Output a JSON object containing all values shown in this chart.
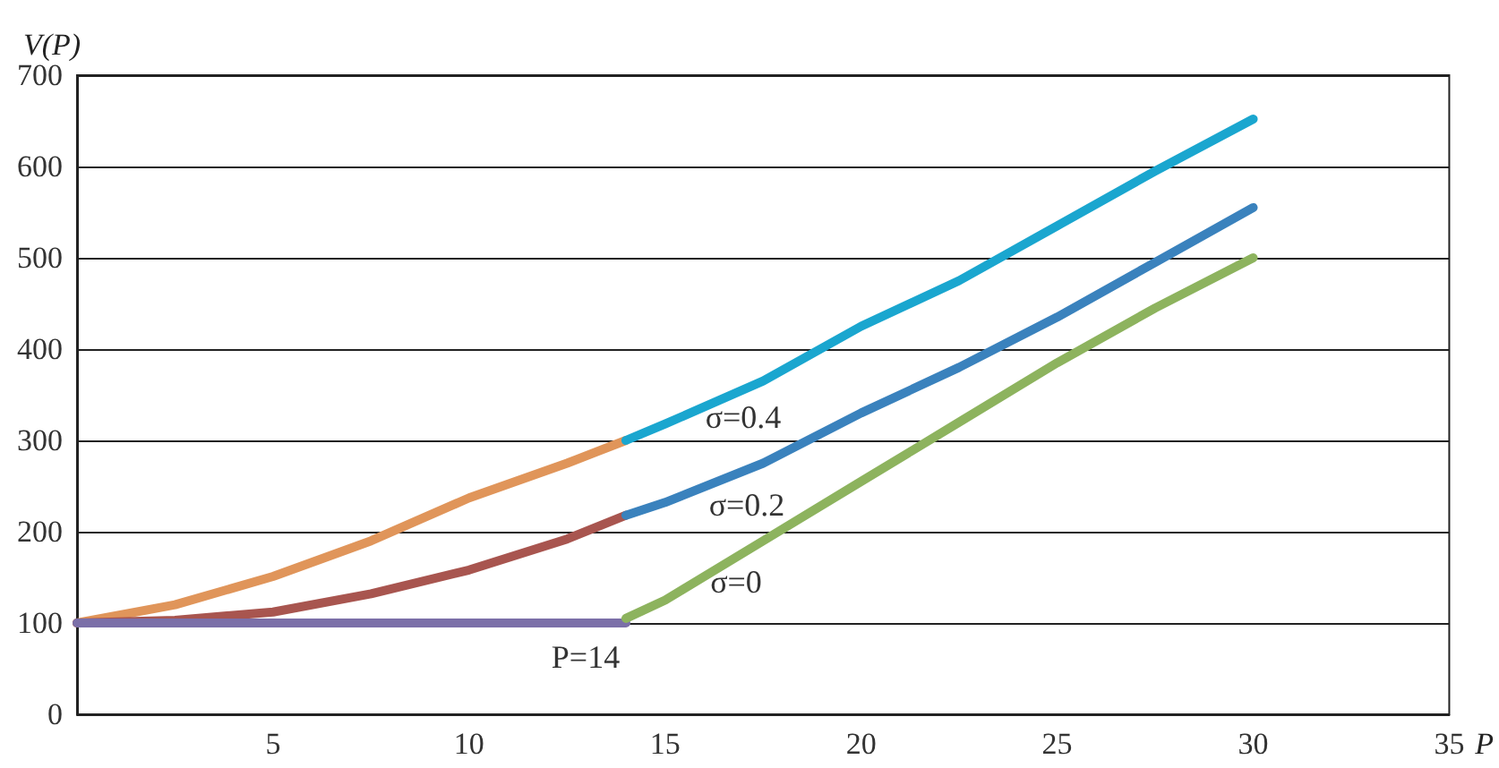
{
  "chart_data": {
    "type": "line",
    "xlabel": "P",
    "ylabel": "V(P)",
    "xlim": [
      0,
      35
    ],
    "ylim": [
      0,
      700
    ],
    "xticks": [
      5,
      10,
      15,
      20,
      25,
      30,
      35
    ],
    "yticks": [
      0,
      100,
      200,
      300,
      400,
      500,
      600,
      700
    ],
    "grid": "y",
    "marker": "none",
    "line_style": "solid",
    "series": [
      {
        "color": "#e0955a",
        "x": [
          0,
          2.5,
          5,
          7.5,
          10,
          12.5,
          14
        ],
        "values": [
          100,
          120,
          151,
          190,
          237,
          275,
          300
        ]
      },
      {
        "color": "#1aa6cf",
        "x": [
          14,
          15,
          17.5,
          20,
          22.5,
          25,
          27.5,
          30
        ],
        "values": [
          300,
          318,
          365,
          425,
          475,
          535,
          595,
          652
        ]
      },
      {
        "color": "#a8554f",
        "x": [
          0,
          2.5,
          5,
          7.5,
          10,
          12.5,
          14
        ],
        "values": [
          100,
          103,
          112,
          132,
          158,
          192,
          218
        ]
      },
      {
        "color": "#3a82bd",
        "x": [
          14,
          15,
          17.5,
          20,
          22.5,
          25,
          27.5,
          30
        ],
        "values": [
          218,
          232,
          275,
          330,
          380,
          435,
          495,
          555
        ]
      },
      {
        "color": "#7b6fa8",
        "x": [
          0,
          14
        ],
        "values": [
          100,
          100
        ]
      },
      {
        "color": "#8db35e",
        "x": [
          14,
          15,
          17.5,
          20,
          22.5,
          25,
          27.5,
          30
        ],
        "values": [
          105,
          125,
          190,
          255,
          320,
          385,
          445,
          500
        ]
      }
    ],
    "annotations": [
      "σ=0.4",
      "σ=0.2",
      "σ=0",
      "P=14"
    ]
  }
}
